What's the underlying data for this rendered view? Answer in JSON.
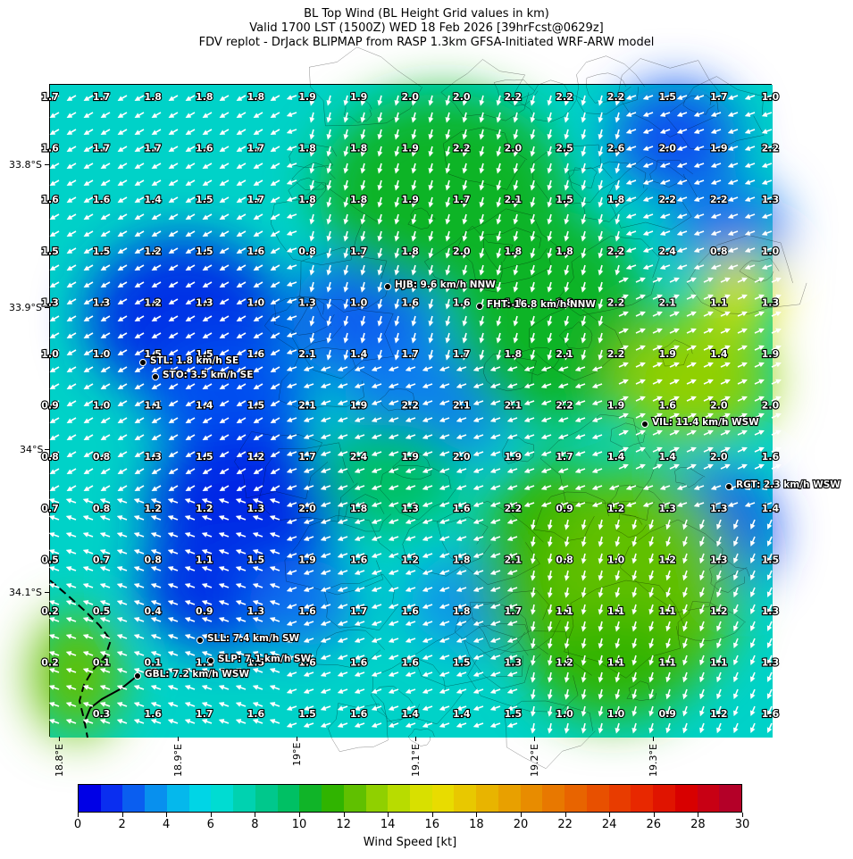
{
  "title": {
    "line1": "BL Top Wind (BL Height Grid values in km)",
    "line2": "Valid 1700 LST (1500Z) WED 18 Feb 2026 [39hrFcst@0629z]",
    "line3": "FDV replot - DrJack BLIPMAP from RASP 1.3km GFSA-Initiated WRF-ARW model"
  },
  "lat_labels": [
    "33.8°S",
    "33.9°S",
    "34°S",
    "34.1°S"
  ],
  "lon_labels": [
    "18.8°E",
    "18.9°E",
    "19°E",
    "19.1°E",
    "19.2°E",
    "19.3°E"
  ],
  "grid_values": [
    [
      "1.7",
      "1.7",
      "1.8",
      "1.8",
      "1.8",
      "1.9",
      "1.9",
      "2.0",
      "2.0",
      "2.2",
      "2.2",
      "2.2",
      "1.5",
      "1.7",
      "1.0"
    ],
    [
      "1.6",
      "1.7",
      "1.7",
      "1.6",
      "1.7",
      "1.8",
      "1.8",
      "1.9",
      "2.2",
      "2.0",
      "2.5",
      "2.6",
      "2.0",
      "1.9",
      "2.2"
    ],
    [
      "1.6",
      "1.6",
      "1.4",
      "1.5",
      "1.7",
      "1.8",
      "1.8",
      "1.9",
      "1.7",
      "2.1",
      "1.5",
      "1.8",
      "2.2",
      "2.2",
      "1.3"
    ],
    [
      "1.5",
      "1.5",
      "1.2",
      "1.5",
      "1.6",
      "0.8",
      "1.7",
      "1.8",
      "2.0",
      "1.8",
      "1.8",
      "2.2",
      "2.4",
      "0.8",
      "1.0"
    ],
    [
      "1.3",
      "1.3",
      "1.2",
      "1.3",
      "1.0",
      "1.3",
      "1.0",
      "1.6",
      "1.6",
      "1.8",
      "1.8",
      "2.2",
      "2.1",
      "1.1",
      "1.3"
    ],
    [
      "1.0",
      "1.0",
      "1.5",
      "1.5",
      "1.6",
      "2.1",
      "1.4",
      "1.7",
      "1.7",
      "1.8",
      "2.1",
      "2.2",
      "1.9",
      "1.4",
      "1.9"
    ],
    [
      "0.9",
      "1.0",
      "1.1",
      "1.4",
      "1.5",
      "2.1",
      "1.9",
      "2.2",
      "2.1",
      "2.1",
      "2.2",
      "1.9",
      "1.6",
      "2.0",
      "2.0"
    ],
    [
      "0.8",
      "0.8",
      "1.3",
      "1.5",
      "1.2",
      "1.7",
      "2.4",
      "1.9",
      "2.0",
      "1.9",
      "1.7",
      "1.4",
      "1.4",
      "2.0",
      "1.6"
    ],
    [
      "0.7",
      "0.8",
      "1.2",
      "1.2",
      "1.3",
      "2.0",
      "1.8",
      "1.3",
      "1.6",
      "2.2",
      "0.9",
      "1.2",
      "1.3",
      "1.3",
      "1.4"
    ],
    [
      "0.5",
      "0.7",
      "0.8",
      "1.1",
      "1.5",
      "1.9",
      "1.6",
      "1.2",
      "1.8",
      "2.1",
      "0.8",
      "1.0",
      "1.2",
      "1.3",
      "1.5"
    ],
    [
      "0.2",
      "0.5",
      "0.4",
      "0.9",
      "1.3",
      "1.6",
      "1.7",
      "1.6",
      "1.8",
      "1.7",
      "1.1",
      "1.1",
      "1.1",
      "1.2",
      "1.3"
    ],
    [
      "0.2",
      "0.1",
      "0.1",
      "1.1",
      "1.5",
      "1.6",
      "1.6",
      "1.6",
      "1.5",
      "1.3",
      "1.2",
      "1.1",
      "1.1",
      "1.1",
      "1.3"
    ],
    [
      "",
      "0.3",
      "1.6",
      "1.7",
      "1.6",
      "1.5",
      "1.6",
      "1.4",
      "1.4",
      "1.5",
      "1.0",
      "1.0",
      "0.9",
      "1.2",
      "1.6"
    ]
  ],
  "stations": [
    {
      "label": "HJB: 9.6 km/h NNW"
    },
    {
      "label": "FHT: 16.8 km/h NNW"
    },
    {
      "label": "STL: 1.8 km/h SE"
    },
    {
      "label": "STO: 3.5 km/h SE"
    },
    {
      "label": "VIL: 11.4 km/h WSW"
    },
    {
      "label": "RGT: 2.3 km/h WSW"
    },
    {
      "label": "SLL: 7.4 km/h SW"
    },
    {
      "label": "SLP: 7.1 km/h SW"
    },
    {
      "label": "GBL: 7.2 km/h WSW"
    }
  ],
  "colorbar": {
    "title": "Wind Speed [kt]",
    "min": 0,
    "max": 30,
    "step": 1,
    "tick_labels": [
      "0",
      "2",
      "4",
      "6",
      "8",
      "10",
      "12",
      "14",
      "16",
      "18",
      "20",
      "22",
      "24",
      "26",
      "28",
      "30"
    ],
    "colors": [
      "#0000e6",
      "#0a2ef0",
      "#0a5ef0",
      "#0890ee",
      "#05b8ec",
      "#00d5e6",
      "#00dcd2",
      "#00d2b0",
      "#00c88c",
      "#00c064",
      "#10b428",
      "#30b400",
      "#60c000",
      "#90d000",
      "#b8dc00",
      "#d8e000",
      "#e8dc00",
      "#e8c800",
      "#e8b400",
      "#e8a000",
      "#e88c00",
      "#e87800",
      "#e86400",
      "#e85000",
      "#e83c00",
      "#e82800",
      "#e01400",
      "#d80000",
      "#c80014",
      "#b40028"
    ]
  }
}
